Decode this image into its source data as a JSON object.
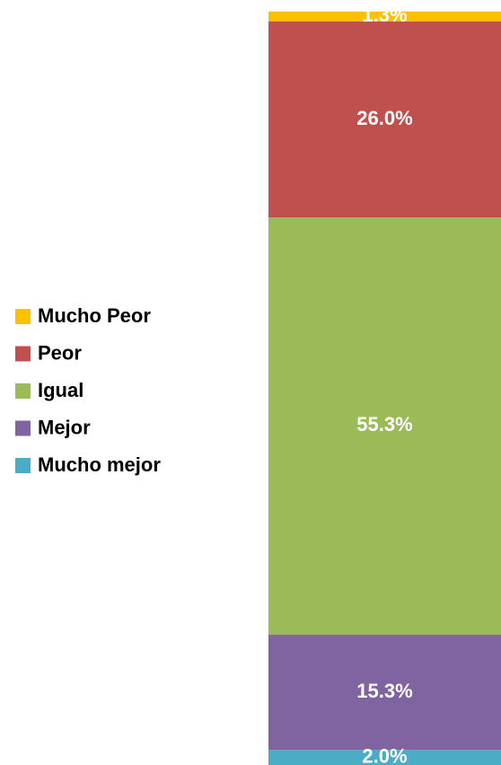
{
  "chart_data": {
    "type": "stacked_bar",
    "series": [
      {
        "name": "Mucho Peor",
        "color": "#FFC000",
        "values": [
          1.3
        ],
        "value_labels": [
          "1.3%"
        ]
      },
      {
        "name": "Peor",
        "color": "#C0504D",
        "values": [
          26.0
        ],
        "value_labels": [
          "26.0%"
        ]
      },
      {
        "name": "Igual",
        "color": "#9BBB59",
        "values": [
          55.3
        ],
        "value_labels": [
          "55.3%"
        ]
      },
      {
        "name": "Mejor",
        "color": "#8064A2",
        "values": [
          15.3
        ],
        "value_labels": [
          "15.3%"
        ]
      },
      {
        "name": "Mucho mejor",
        "color": "#4BACC6",
        "values": [
          2.0
        ],
        "value_labels": [
          "2.0%"
        ]
      }
    ],
    "ylim": [
      0,
      100
    ]
  }
}
